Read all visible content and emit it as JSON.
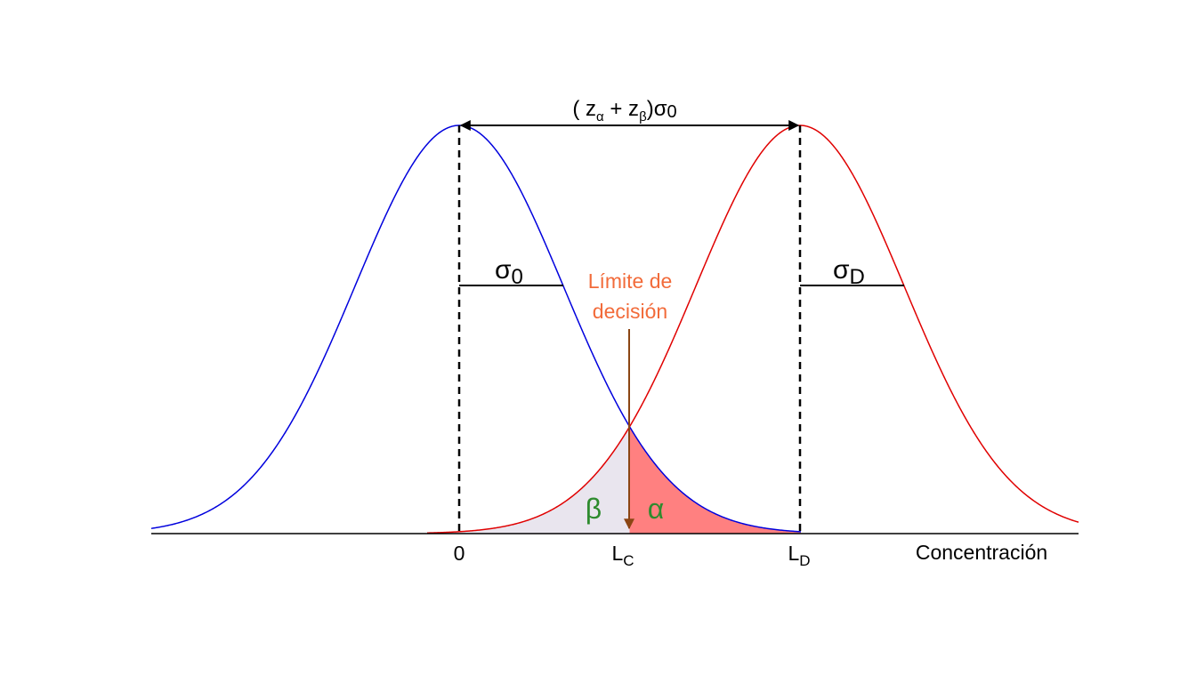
{
  "separation_label": {
    "open": "( z",
    "alpha_sub": "α",
    "plus": " + z",
    "beta_sub": "β",
    "sigma": ")σ",
    "zero_sub": "0"
  },
  "sigma_blank": {
    "symbol": "σ",
    "sub": "0"
  },
  "sigma_detection": {
    "symbol": "σ",
    "sub": "D"
  },
  "decision_limit": {
    "lines": [
      "Límite de",
      "decisión"
    ]
  },
  "beta_area": "β",
  "alpha_area": "α",
  "axis": {
    "zero": "0",
    "lc": {
      "main": "L",
      "sub": "C"
    },
    "ld": {
      "main": "L",
      "sub": "D"
    },
    "title": "Concentración"
  }
}
